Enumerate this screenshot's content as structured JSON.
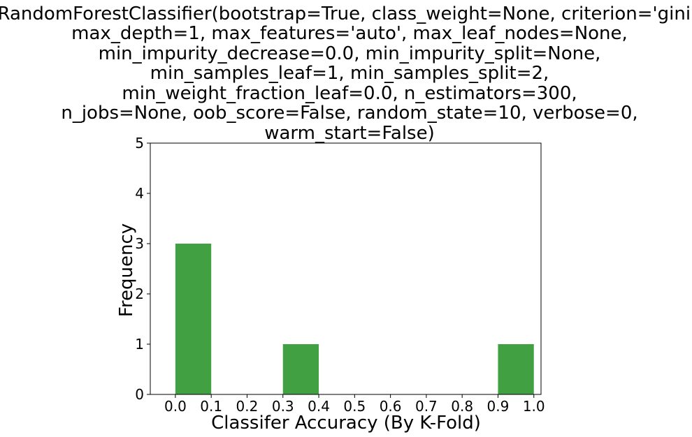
{
  "chart_data": {
    "type": "bar",
    "title_lines": [
      "RandomForestClassifier(bootstrap=True, class_weight=None, criterion='gini',",
      "max_depth=1, max_features='auto', max_leaf_nodes=None,",
      "min_impurity_decrease=0.0, min_impurity_split=None,",
      "min_samples_leaf=1, min_samples_split=2,",
      "min_weight_fraction_leaf=0.0, n_estimators=300,",
      "n_jobs=None, oob_score=False, random_state=10, verbose=0,",
      "warm_start=False)"
    ],
    "xlabel": "Classifer Accuracy (By K-Fold)",
    "ylabel": "Frequency",
    "xlim": [
      -0.07,
      1.02
    ],
    "ylim": [
      0,
      5
    ],
    "x_ticks": [
      "0.0",
      "0.1",
      "0.2",
      "0.3",
      "0.4",
      "0.5",
      "0.6",
      "0.7",
      "0.8",
      "0.9",
      "1.0"
    ],
    "y_ticks": [
      "0",
      "1",
      "2",
      "3",
      "4",
      "5"
    ],
    "bars": [
      {
        "x_start": 0.0,
        "x_end": 0.1,
        "value": 3
      },
      {
        "x_start": 0.3,
        "x_end": 0.4,
        "value": 1
      },
      {
        "x_start": 0.9,
        "x_end": 1.0,
        "value": 1
      }
    ],
    "bar_color": "#41a041",
    "grid": false
  }
}
